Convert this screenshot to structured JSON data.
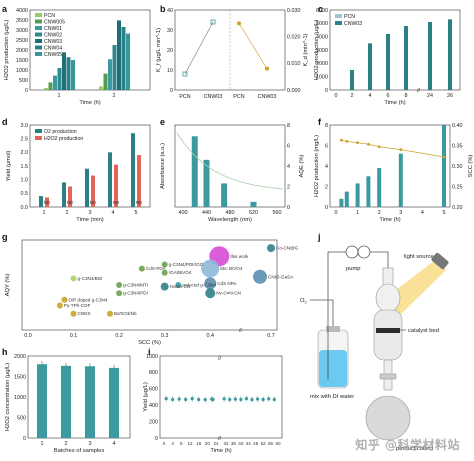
{
  "colors": {
    "teal_dark": "#2d7f86",
    "teal": "#3b9a9f",
    "green": "#6aa24a",
    "green_light": "#a8cf68",
    "gold": "#c9a227",
    "magenta": "#d64bd6",
    "blue": "#5a8fb0",
    "water": "#6cc9ef",
    "light": "#f4c842"
  },
  "panels": {
    "a": {
      "label": "a"
    },
    "b": {
      "label": "b"
    },
    "c": {
      "label": "c"
    },
    "d": {
      "label": "d"
    },
    "e": {
      "label": "e"
    },
    "f": {
      "label": "f"
    },
    "g": {
      "label": "g"
    },
    "h": {
      "label": "h"
    },
    "i": {
      "label": "i"
    },
    "j": {
      "label": "j"
    }
  },
  "diagram": {
    "pump": "pump",
    "light_source": "light source",
    "catalyst_bed": "catalyst bed",
    "o2": "O",
    "o2_sub": "2",
    "mix": "mix with DI water",
    "product": "product collect"
  },
  "watermark": "知乎 @科学材料站",
  "chart_data": [
    {
      "panel": "a",
      "type": "bar",
      "xlabel": "Time (h)",
      "ylabel": "H2O2 production (μg/L)",
      "ylim": [
        0,
        4000
      ],
      "yticks": [
        0,
        500,
        1000,
        1500,
        2000,
        2500,
        3000,
        3500,
        4000
      ],
      "categories": [
        "1",
        "2"
      ],
      "series": [
        {
          "name": "PCN",
          "values": [
            100,
            180
          ]
        },
        {
          "name": "CNW005",
          "values": [
            380,
            820
          ]
        },
        {
          "name": "CNW01",
          "values": [
            720,
            1540
          ]
        },
        {
          "name": "CNW02",
          "values": [
            1100,
            2250
          ]
        },
        {
          "name": "CNW03",
          "values": [
            1880,
            3480
          ]
        },
        {
          "name": "CNW04",
          "values": [
            1640,
            3150
          ]
        },
        {
          "name": "CNW05",
          "values": [
            1500,
            2820
          ]
        }
      ],
      "legend": "top-left"
    },
    {
      "panel": "b",
      "type": "scatter",
      "ylabel_left": "K_f (μg/L min^-1)",
      "ylabel_right": "K_d (min^-1)",
      "left": {
        "categories": [
          "PCN",
          "CNW03"
        ],
        "values": [
          8,
          34
        ],
        "ylim": [
          0,
          40
        ],
        "yticks": [
          0,
          10,
          20,
          30,
          40
        ]
      },
      "right": {
        "categories": [
          "PCN",
          "CNW03"
        ],
        "values": [
          0.025,
          0.008
        ],
        "ylim": [
          0,
          0.03
        ],
        "yticks": [
          "0.000",
          "0.010",
          "0.020",
          "0.030"
        ]
      }
    },
    {
      "panel": "c",
      "type": "bar",
      "xlabel": "Time (h)",
      "ylabel": "H2O2 production (μg/L)",
      "ylim": [
        0,
        6000
      ],
      "yticks": [
        0,
        1000,
        2000,
        3000,
        4000,
        5000,
        6000
      ],
      "xticks": [
        "0",
        "2",
        "4",
        "6",
        "8",
        "24",
        "26"
      ],
      "series": [
        {
          "name": "PCN",
          "x": [
            2,
            4,
            6,
            8,
            24,
            26
          ],
          "values": [
            0,
            0,
            0,
            0,
            0,
            0
          ]
        },
        {
          "name": "CNW03",
          "x": [
            2,
            4,
            6,
            8,
            24,
            26
          ],
          "values": [
            1500,
            3500,
            4200,
            4800,
            5100,
            5300
          ]
        }
      ],
      "legend": "top-left"
    },
    {
      "panel": "d",
      "type": "bar",
      "xlabel": "Time (min)",
      "ylabel": "Yield (μmol)",
      "ylim": [
        0,
        3.0
      ],
      "yticks": [
        "0.0",
        "0.5",
        "1.0",
        "1.5",
        "2.0",
        "2.5",
        "3.0"
      ],
      "categories": [
        "1",
        "2",
        "3",
        "4",
        "5"
      ],
      "series": [
        {
          "name": "O2 production",
          "values": [
            0.4,
            0.9,
            1.4,
            2.0,
            2.7
          ]
        },
        {
          "name": "H2O2 production",
          "values": [
            0.35,
            0.75,
            1.15,
            1.55,
            1.9
          ]
        }
      ],
      "annotations": [
        "ND",
        "ND",
        "ND",
        "ND",
        "ND"
      ],
      "legend": "top-left"
    },
    {
      "panel": "e",
      "type": "bar",
      "xlabel": "Wavelength (nm)",
      "ylabel_left": "Absorbance (a.u.)",
      "ylabel_right": "AQE (%)",
      "xticks": [
        "400",
        "440",
        "480",
        "520",
        "560"
      ],
      "yticks_right": [
        "0",
        "2",
        "4",
        "6",
        "8"
      ],
      "values": [
        {
          "x": 420,
          "aqe": 6.9
        },
        {
          "x": 440,
          "aqe": 4.6
        },
        {
          "x": 470,
          "aqe": 2.3
        },
        {
          "x": 520,
          "aqe": 0.5
        }
      ]
    },
    {
      "panel": "f",
      "type": "bar",
      "xlabel": "Time (h)",
      "ylabel_left": "H2O2 production (mg/L)",
      "ylabel_right": "SCC (%)",
      "ylim": [
        0,
        8
      ],
      "yticks": [
        "0",
        "2",
        "4",
        "6",
        "8"
      ],
      "yticks_right": [
        "0.20",
        "0.25",
        "0.30",
        "0.35",
        "0.40"
      ],
      "categories": [
        "0",
        "1",
        "2",
        "3",
        "4",
        "5"
      ],
      "bars": [
        {
          "x": 0.25,
          "value": 0.8
        },
        {
          "x": 0.5,
          "value": 1.5
        },
        {
          "x": 1,
          "value": 2.3
        },
        {
          "x": 1.5,
          "value": 3.0
        },
        {
          "x": 2,
          "value": 3.8
        },
        {
          "x": 3,
          "value": 5.2
        },
        {
          "x": 5,
          "value": 8.0
        }
      ],
      "scc": [
        {
          "x": 0.25,
          "value": 0.363
        },
        {
          "x": 0.5,
          "value": 0.36
        },
        {
          "x": 1,
          "value": 0.357
        },
        {
          "x": 1.5,
          "value": 0.353
        },
        {
          "x": 2,
          "value": 0.347
        },
        {
          "x": 3,
          "value": 0.34
        },
        {
          "x": 5,
          "value": 0.322
        }
      ]
    },
    {
      "panel": "g",
      "type": "scatter",
      "xlabel": "SCC (%)",
      "ylabel": "AQY (%)",
      "xticks": [
        "0.0",
        "0.1",
        "0.2",
        "0.3",
        "0.4",
        "0.7"
      ],
      "points": [
        {
          "label": "this work",
          "x": 0.42,
          "y": 8.5,
          "size": 10,
          "color": "#d64bd6"
        },
        {
          "label": "Mo: BiVO4",
          "x": 0.4,
          "y": 7.0,
          "size": 9,
          "color": "#8fb8d6"
        },
        {
          "label": "CNIO-GaSA",
          "x": 0.65,
          "y": 6.0,
          "size": 7,
          "color": "#5a8fb0"
        },
        {
          "label": "Co-CN@G",
          "x": 0.7,
          "y": 9.5,
          "size": 4,
          "color": "#2d7f86"
        },
        {
          "label": "CdS NRs",
          "x": 0.4,
          "y": 5.2,
          "size": 6,
          "color": "#5a8fb0"
        },
        {
          "label": "reduced g-C3N4",
          "x": 0.33,
          "y": 5.0,
          "size": 3,
          "color": "#3b9a9f"
        },
        {
          "label": "Nv-C≡N-CN",
          "x": 0.4,
          "y": 4.0,
          "size": 5,
          "color": "#2d7f86"
        },
        {
          "label": "Homo-CN",
          "x": 0.3,
          "y": 4.8,
          "size": 4,
          "color": "#2d7f86"
        },
        {
          "label": "g-C3N4/PDI/rGO",
          "x": 0.3,
          "y": 7.5,
          "size": 3,
          "color": "#6aa24a"
        },
        {
          "label": "CdS-PDA",
          "x": 0.25,
          "y": 7.0,
          "size": 3,
          "color": "#6aa24a"
        },
        {
          "label": "rGA/BiVO4",
          "x": 0.3,
          "y": 6.5,
          "size": 3,
          "color": "#6aa24a"
        },
        {
          "label": "g-C3N4/BDI",
          "x": 0.1,
          "y": 5.8,
          "size": 3,
          "color": "#a8cf68"
        },
        {
          "label": "g-C3N4/MTI",
          "x": 0.2,
          "y": 5.0,
          "size": 3,
          "color": "#6aa24a"
        },
        {
          "label": "g-C3N4/PDI",
          "x": 0.2,
          "y": 4.0,
          "size": 3,
          "color": "#6aa24a"
        },
        {
          "label": "O/P doped g-C3N4",
          "x": 0.08,
          "y": 3.2,
          "size": 3,
          "color": "#c9a227"
        },
        {
          "label": "Py-TPh-COF",
          "x": 0.07,
          "y": 2.5,
          "size": 3,
          "color": "#c9a227"
        },
        {
          "label": "CNNS",
          "x": 0.1,
          "y": 1.5,
          "size": 3,
          "color": "#c9a227"
        },
        {
          "label": "BaTiO3/Nb",
          "x": 0.18,
          "y": 1.5,
          "size": 3,
          "color": "#c9a227"
        }
      ]
    },
    {
      "panel": "h",
      "type": "bar",
      "xlabel": "Batches of samples",
      "ylabel": "H2O2 concentration (μg/L)",
      "ylim": [
        0,
        2000
      ],
      "yticks": [
        "0",
        "500",
        "1000",
        "1500",
        "2000"
      ],
      "categories": [
        "1",
        "2",
        "3",
        "4"
      ],
      "values": [
        1800,
        1760,
        1750,
        1710
      ]
    },
    {
      "panel": "i",
      "type": "scatter",
      "xlabel": "Time (h)",
      "ylabel": "Yield (μg/L)",
      "ylim": [
        0,
        1000
      ],
      "yticks": [
        "0",
        "200",
        "400",
        "600",
        "800",
        "1000"
      ],
      "xticks": [
        "0",
        "4",
        "8",
        "12",
        "16",
        "20",
        "24",
        "32",
        "36",
        "40",
        "44",
        "48",
        "52",
        "56",
        "60"
      ],
      "x": [
        1,
        4,
        7,
        10,
        13,
        16,
        19,
        22,
        25,
        31,
        34,
        37,
        40,
        43,
        46,
        49,
        52,
        55,
        58
      ],
      "values": [
        480,
        470,
        475,
        470,
        480,
        470,
        468,
        475,
        470,
        478,
        470,
        474,
        470,
        480,
        468,
        475,
        470,
        478,
        470
      ]
    }
  ]
}
